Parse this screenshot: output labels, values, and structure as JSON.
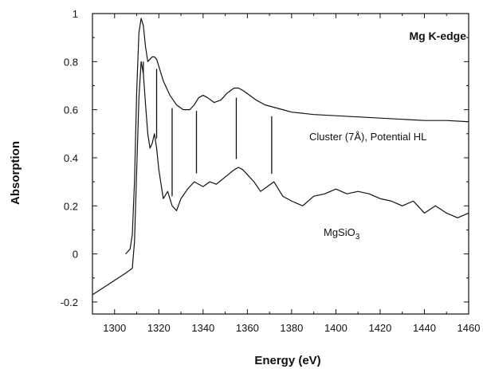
{
  "chart_data": {
    "type": "line",
    "title": "Mg K-edge",
    "xlabel": "Energy (eV)",
    "ylabel": "Absorption",
    "xlim": [
      1290,
      1460
    ],
    "ylim": [
      -0.25,
      1.0
    ],
    "xticks": [
      1300,
      1320,
      1340,
      1360,
      1380,
      1400,
      1420,
      1440,
      1460
    ],
    "yticks": [
      -0.2,
      0,
      0.2,
      0.4,
      0.6,
      0.8,
      1
    ],
    "ytick_labels": [
      "-0.2",
      "0",
      "0.2",
      "0.4",
      "0.6",
      "0.8",
      "1"
    ],
    "grid": false,
    "legend": "none",
    "series": [
      {
        "label": "Cluster (7Å), Potential HL",
        "x": [
          1305,
          1307,
          1308,
          1309,
          1310,
          1311,
          1312,
          1313,
          1314,
          1315,
          1316,
          1317,
          1318,
          1319,
          1320,
          1322,
          1325,
          1328,
          1331,
          1334,
          1336,
          1338,
          1340,
          1342,
          1345,
          1348,
          1351,
          1354,
          1356,
          1358,
          1361,
          1364,
          1368,
          1372,
          1376,
          1380,
          1390,
          1400,
          1410,
          1420,
          1430,
          1440,
          1450,
          1460
        ],
        "y": [
          0.0,
          0.02,
          0.08,
          0.3,
          0.68,
          0.92,
          0.98,
          0.95,
          0.86,
          0.8,
          0.81,
          0.82,
          0.82,
          0.81,
          0.78,
          0.72,
          0.66,
          0.62,
          0.6,
          0.6,
          0.62,
          0.65,
          0.66,
          0.65,
          0.63,
          0.64,
          0.67,
          0.69,
          0.69,
          0.68,
          0.66,
          0.64,
          0.62,
          0.61,
          0.6,
          0.59,
          0.58,
          0.575,
          0.57,
          0.565,
          0.56,
          0.555,
          0.555,
          0.55
        ]
      },
      {
        "label": "MgSiO3",
        "x": [
          1290,
          1295,
          1300,
          1305,
          1308,
          1309,
          1310,
          1311,
          1312,
          1313,
          1314,
          1315,
          1316,
          1317,
          1318,
          1319,
          1320,
          1322,
          1324,
          1326,
          1328,
          1330,
          1333,
          1336,
          1338,
          1340,
          1343,
          1346,
          1350,
          1354,
          1356,
          1358,
          1360,
          1363,
          1366,
          1369,
          1372,
          1376,
          1380,
          1385,
          1390,
          1395,
          1400,
          1405,
          1410,
          1415,
          1420,
          1425,
          1430,
          1435,
          1440,
          1445,
          1450,
          1455,
          1460
        ],
        "y": [
          -0.17,
          -0.14,
          -0.11,
          -0.08,
          -0.06,
          0.05,
          0.35,
          0.65,
          0.8,
          0.75,
          0.62,
          0.5,
          0.44,
          0.46,
          0.5,
          0.44,
          0.35,
          0.23,
          0.26,
          0.2,
          0.18,
          0.23,
          0.27,
          0.3,
          0.29,
          0.28,
          0.3,
          0.29,
          0.32,
          0.35,
          0.36,
          0.35,
          0.33,
          0.3,
          0.26,
          0.28,
          0.3,
          0.24,
          0.22,
          0.2,
          0.24,
          0.25,
          0.27,
          0.25,
          0.26,
          0.25,
          0.23,
          0.22,
          0.2,
          0.22,
          0.17,
          0.2,
          0.17,
          0.15,
          0.17
        ]
      }
    ],
    "vertical_markers_x": [
      1313,
      1319,
      1326,
      1337,
      1355,
      1371
    ],
    "annotations": {
      "series1_label": "Cluster (7Å), Potential HL",
      "series2_label_main": "MgSiO",
      "series2_label_sub": "3"
    }
  }
}
